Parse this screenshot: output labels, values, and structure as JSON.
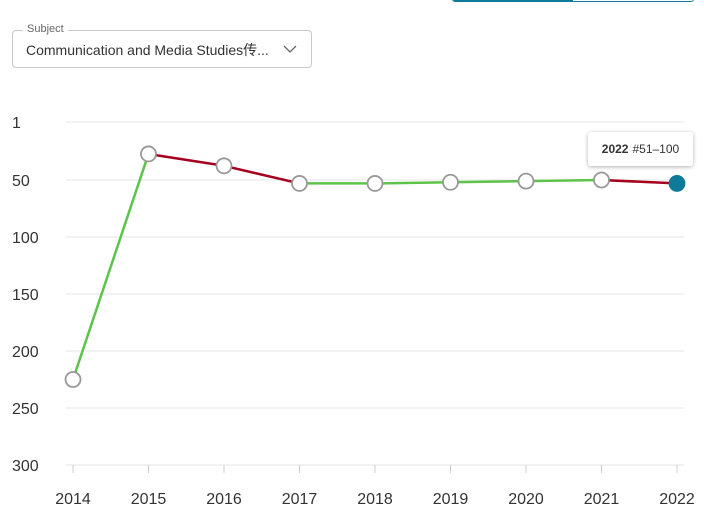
{
  "subject_select": {
    "legend": "Subject",
    "value": "Communication and Media Studies传..."
  },
  "chart_data": {
    "type": "line",
    "x": [
      "2014",
      "2015",
      "2016",
      "2017",
      "2018",
      "2019",
      "2020",
      "2021",
      "2022"
    ],
    "series": [
      {
        "values": [
          225,
          28,
          38,
          53,
          53,
          52,
          51,
          50,
          53
        ]
      }
    ],
    "y_ticks": [
      "1",
      "50",
      "100",
      "150",
      "200",
      "250",
      "300"
    ],
    "y_tick_values": [
      1,
      50,
      100,
      150,
      200,
      250,
      300
    ],
    "ylim": [
      1,
      300
    ],
    "y_inverted": true,
    "grid": true,
    "colors": {
      "improved": "#5ec34a",
      "declined": "#a5001e",
      "highlight": "#0d7a99",
      "point_stroke": "#999999"
    },
    "tooltip": {
      "year": "2022",
      "rank": "#51–100"
    }
  }
}
